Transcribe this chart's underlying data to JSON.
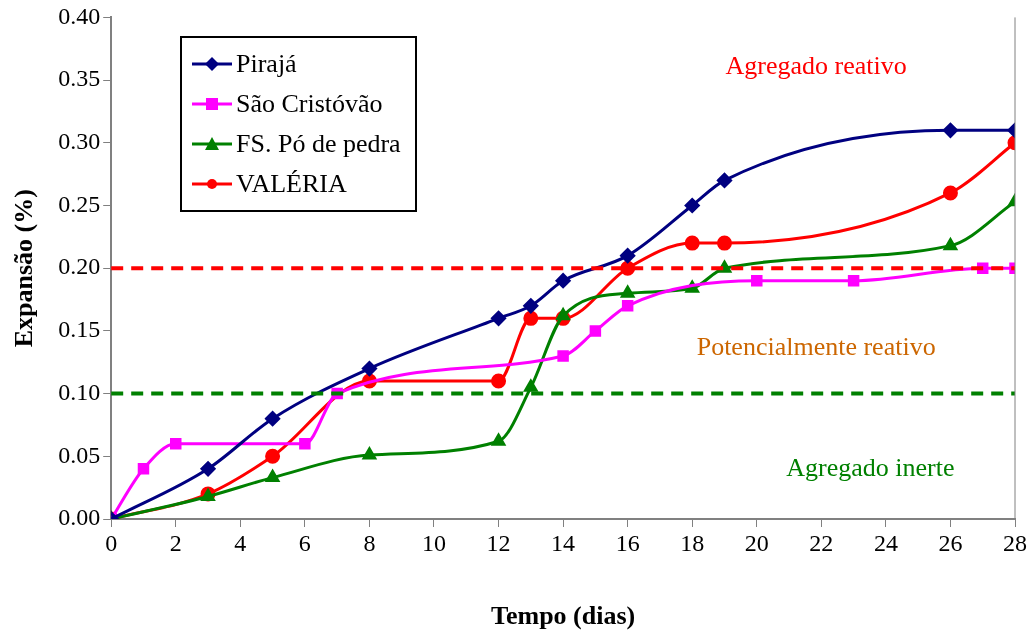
{
  "chart_data": {
    "type": "line",
    "xlabel": "Tempo (dias)",
    "ylabel": "Expansão (%)",
    "xlim": [
      0,
      28
    ],
    "xticks": [
      0,
      2,
      4,
      6,
      8,
      10,
      12,
      14,
      16,
      18,
      20,
      22,
      24,
      26,
      28
    ],
    "ylim": [
      0,
      0.4
    ],
    "yticks": [
      {
        "value": 0,
        "label": "0.00"
      },
      {
        "value": 0.05,
        "label": "0.05"
      },
      {
        "value": 0.1,
        "label": "0.10"
      },
      {
        "value": 0.15,
        "label": "0.15"
      },
      {
        "value": 0.2,
        "label": "0.20"
      },
      {
        "value": 0.25,
        "label": "0.25"
      },
      {
        "value": 0.3,
        "label": "0.30"
      },
      {
        "value": 0.35,
        "label": "0.35"
      },
      {
        "value": 0.4,
        "label": "0.40"
      }
    ],
    "grid": false,
    "legend": "top left",
    "line_style": "solid",
    "series": [
      {
        "name": "Pirajá",
        "color": "#000080",
        "marker": "diamond",
        "x": [
          0,
          3,
          5,
          8,
          12,
          13,
          14,
          16,
          18,
          19,
          26,
          28
        ],
        "values": [
          0,
          0.04,
          0.08,
          0.12,
          0.16,
          0.17,
          0.19,
          0.21,
          0.25,
          0.27,
          0.31,
          0.31
        ]
      },
      {
        "name": "São Cristóvão",
        "color": "#ff00ff",
        "marker": "square",
        "x": [
          0,
          1,
          2,
          6,
          7,
          14,
          15,
          16,
          20,
          23,
          27,
          28
        ],
        "values": [
          0,
          0.04,
          0.06,
          0.06,
          0.1,
          0.13,
          0.15,
          0.17,
          0.19,
          0.19,
          0.2,
          0.2
        ]
      },
      {
        "name": "FS. Pó de pedra",
        "color": "#008000",
        "marker": "triangle",
        "x": [
          0,
          3,
          5,
          8,
          12,
          13,
          14,
          16,
          18,
          19,
          26,
          28
        ],
        "values": [
          0,
          0.018,
          0.033,
          0.051,
          0.062,
          0.105,
          0.162,
          0.18,
          0.184,
          0.2,
          0.218,
          0.253
        ]
      },
      {
        "name": "VALÉRIA",
        "color": "#ff0000",
        "marker": "circle",
        "x": [
          0,
          3,
          5,
          8,
          12,
          13,
          14,
          16,
          18,
          19,
          26,
          28
        ],
        "values": [
          0,
          0.02,
          0.05,
          0.11,
          0.11,
          0.16,
          0.16,
          0.2,
          0.22,
          0.22,
          0.26,
          0.3
        ]
      }
    ],
    "ref_lines": [
      {
        "axis": "y",
        "value": 0.2,
        "color": "#ff0000",
        "line_style": "dashed"
      },
      {
        "axis": "y",
        "value": 0.1,
        "color": "#008000",
        "line_style": "dashed"
      }
    ],
    "annotations": [
      "Agregado reativo",
      "Potencialmente reativo",
      "Agregado inerte"
    ]
  }
}
